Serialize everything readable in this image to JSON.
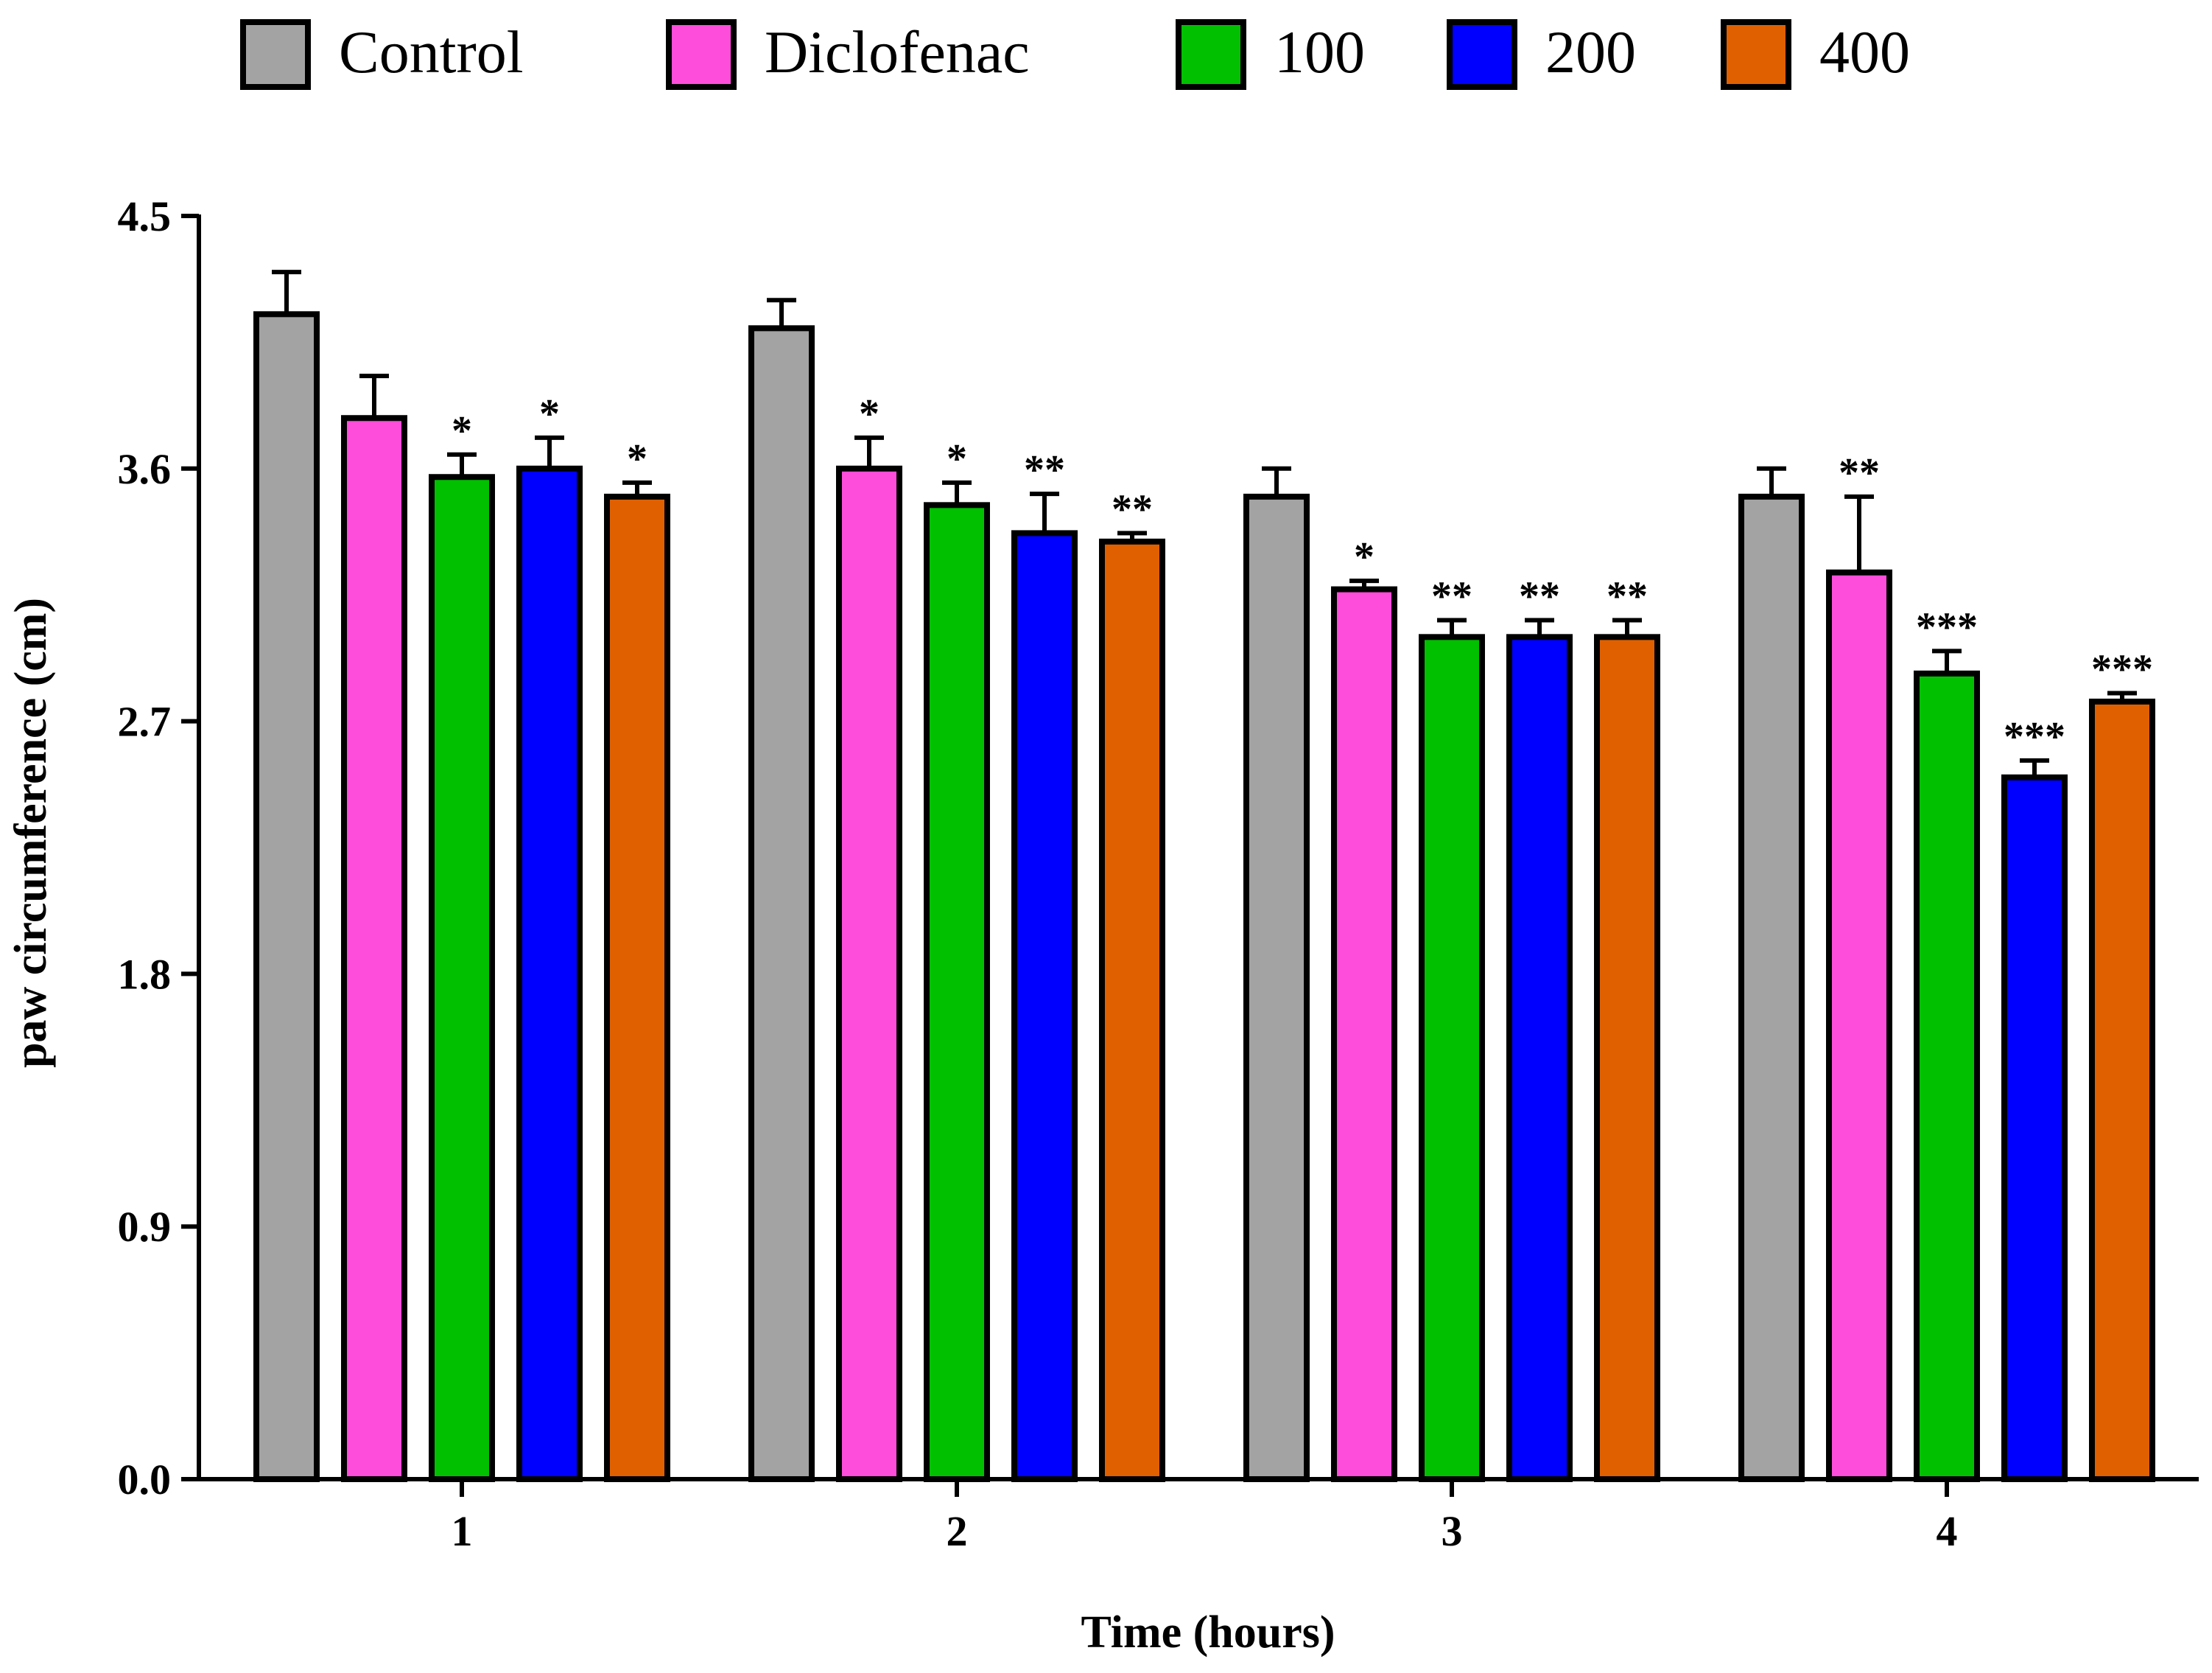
{
  "chart_data": {
    "type": "bar",
    "title": "",
    "xlabel": "Time (hours)",
    "ylabel": "paw circumference (cm)",
    "ylim": [
      0,
      4.5
    ],
    "yticks": [
      "0.0",
      "0.9",
      "1.8",
      "2.7",
      "3.6",
      "4.5"
    ],
    "categories": [
      "1",
      "2",
      "3",
      "4"
    ],
    "legend_position": "top",
    "series": [
      {
        "name": "Control",
        "color": "#a3a3a3",
        "values": [
          4.15,
          4.1,
          3.5,
          3.5
        ],
        "errors": [
          0.15,
          0.1,
          0.1,
          0.1
        ],
        "significance": [
          "",
          "",
          "",
          ""
        ]
      },
      {
        "name": "Diclofenac",
        "color": "#ff4ddb",
        "values": [
          3.78,
          3.6,
          3.17,
          3.23
        ],
        "errors": [
          0.15,
          0.11,
          0.03,
          0.27
        ],
        "significance": [
          "",
          "*",
          "*",
          "**"
        ]
      },
      {
        "name": "100",
        "color": "#00c000",
        "values": [
          3.57,
          3.47,
          3.0,
          2.87
        ],
        "errors": [
          0.08,
          0.08,
          0.06,
          0.08
        ],
        "significance": [
          "*",
          "*",
          "**",
          "***"
        ]
      },
      {
        "name": "200",
        "color": "#0000ff",
        "values": [
          3.6,
          3.37,
          3.0,
          2.5
        ],
        "errors": [
          0.11,
          0.14,
          0.06,
          0.06
        ],
        "significance": [
          "*",
          "**",
          "**",
          "***"
        ]
      },
      {
        "name": "400",
        "color": "#e06000",
        "values": [
          3.5,
          3.34,
          3.0,
          2.77
        ],
        "errors": [
          0.05,
          0.03,
          0.06,
          0.03
        ],
        "significance": [
          "*",
          "**",
          "**",
          "***"
        ]
      }
    ]
  }
}
